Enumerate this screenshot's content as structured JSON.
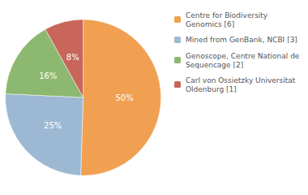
{
  "chart_data": {
    "type": "pie",
    "categories": [
      "Centre for Biodiversity\nGenomics [6]",
      "Mined from GenBank, NCBI [3]",
      "Genoscope, Centre National de\nSequencage [2]",
      "Carl von Ossietzky Universitat\nOldenburg [1]"
    ],
    "values": [
      50,
      25,
      16,
      8
    ],
    "value_labels": [
      "50%",
      "25%",
      "16%",
      "8%"
    ],
    "colors": [
      "#f0a050",
      "#9db8d2",
      "#8db870",
      "#c8665a"
    ],
    "data_labels": true,
    "legend": "upper right"
  }
}
